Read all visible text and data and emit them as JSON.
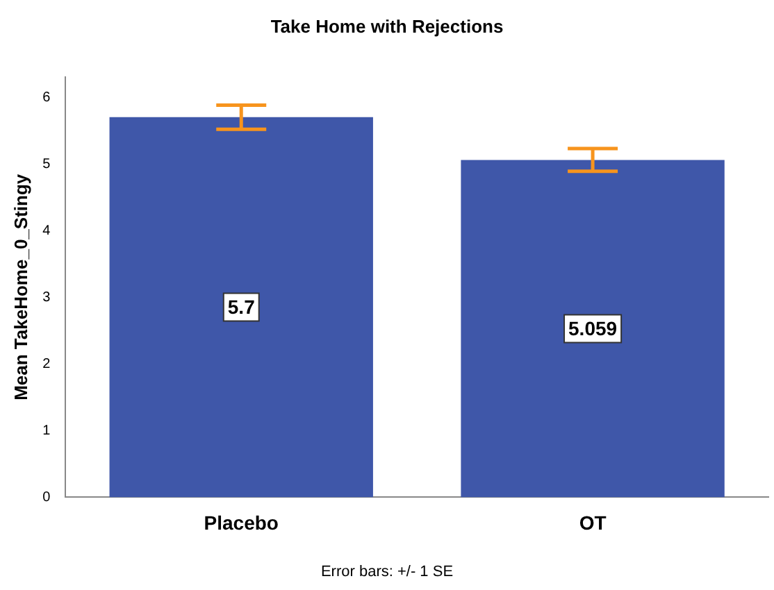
{
  "chart_data": {
    "type": "bar",
    "title": "Take Home with Rejections",
    "ylabel": "Mean TakeHome_0_Stingy",
    "categories": [
      "Placebo",
      "OT"
    ],
    "values": [
      5.7,
      5.059
    ],
    "errors": [
      0.18,
      0.17
    ],
    "color": "#3f57a9",
    "ylim": [
      0,
      6.3
    ],
    "yticks": [
      0,
      1,
      2,
      3,
      4,
      5,
      6
    ],
    "grid": false,
    "legend": false,
    "data_labels": true,
    "annotations": [
      "Error bars: +/- 1 SE"
    ]
  }
}
